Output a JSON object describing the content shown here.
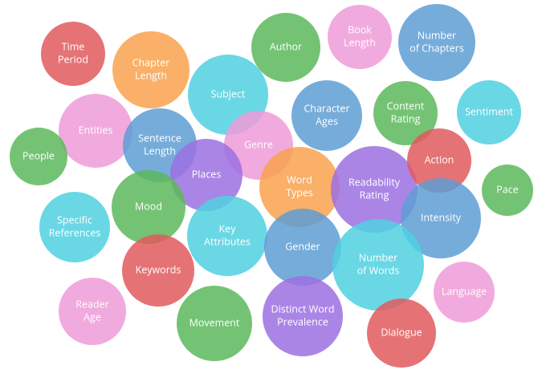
{
  "nodes": [
    {
      "lines": [
        "Time",
        "Period"
      ]
    },
    {
      "lines": [
        "Chapter",
        "Length"
      ]
    },
    {
      "lines": [
        "Author"
      ]
    },
    {
      "lines": [
        "Book",
        "Length"
      ]
    },
    {
      "lines": [
        "Number",
        "of Chapters"
      ]
    },
    {
      "lines": [
        "Subject"
      ]
    },
    {
      "lines": [
        "Character",
        "Ages"
      ]
    },
    {
      "lines": [
        "Content",
        "Rating"
      ]
    },
    {
      "lines": [
        "Sentiment"
      ]
    },
    {
      "lines": [
        "Entities"
      ]
    },
    {
      "lines": [
        "People"
      ]
    },
    {
      "lines": [
        "Sentence",
        "Length"
      ]
    },
    {
      "lines": [
        "Genre"
      ]
    },
    {
      "lines": [
        "Places"
      ]
    },
    {
      "lines": [
        "Word",
        "Types"
      ]
    },
    {
      "lines": [
        "Readability",
        "Rating"
      ]
    },
    {
      "lines": [
        "Action"
      ]
    },
    {
      "lines": [
        "Pace"
      ]
    },
    {
      "lines": [
        "Specific",
        "References"
      ]
    },
    {
      "lines": [
        "Mood"
      ]
    },
    {
      "lines": [
        "Intensity"
      ]
    },
    {
      "lines": [
        "Key",
        "Attributes"
      ]
    },
    {
      "lines": [
        "Gender"
      ]
    },
    {
      "lines": [
        "Number",
        "of Words"
      ]
    },
    {
      "lines": [
        "Keywords"
      ]
    },
    {
      "lines": [
        "Language"
      ]
    },
    {
      "lines": [
        "Reader",
        "Age"
      ]
    },
    {
      "lines": [
        "Movement"
      ]
    },
    {
      "lines": [
        "Distinct Word",
        "Prevalence"
      ]
    },
    {
      "lines": [
        "Dialogue"
      ]
    }
  ]
}
